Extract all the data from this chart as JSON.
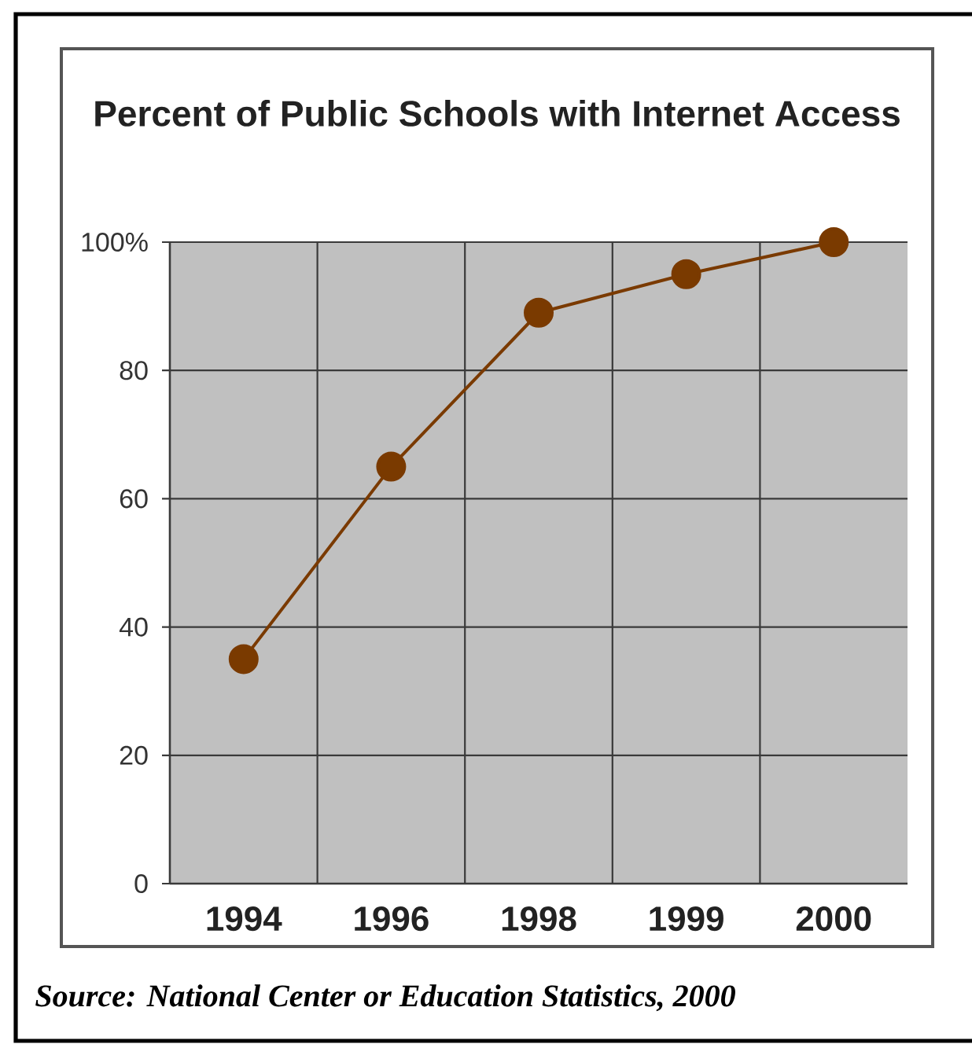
{
  "chart_data": {
    "type": "line",
    "title": "Percent of Public Schools with Internet Access",
    "categories": [
      "1994",
      "1996",
      "1998",
      "1999",
      "2000"
    ],
    "series": [
      {
        "color": "#7a3a00",
        "values": [
          35,
          65,
          89,
          95,
          100
        ]
      }
    ],
    "ylim": [
      0,
      100
    ],
    "yticks": [
      0,
      20,
      40,
      60,
      80,
      {
        "value": 100,
        "label": "100%"
      }
    ],
    "grid": true,
    "marker": "circle",
    "line_style": "solid",
    "annotations": [
      "Source: National Center or Education Statistics, 2000"
    ]
  }
}
